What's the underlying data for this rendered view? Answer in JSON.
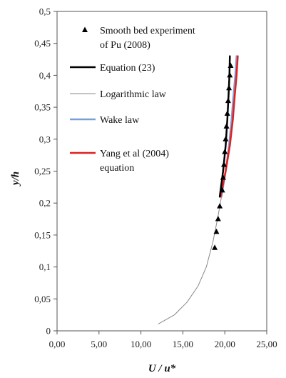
{
  "chart_data": {
    "type": "line",
    "xlabel": "U / u*",
    "ylabel": "y/h",
    "xlim": [
      0,
      25
    ],
    "ylim": [
      0,
      0.5
    ],
    "x_ticks": [
      "0,00",
      "5,00",
      "10,00",
      "15,00",
      "20,00",
      "25,00"
    ],
    "y_ticks": [
      "0",
      "0,05",
      "0,1",
      "0,15",
      "0,2",
      "0,25",
      "0,3",
      "0,35",
      "0,4",
      "0,45",
      "0,5"
    ],
    "grid": false,
    "legend_placement": "top-left",
    "series": [
      {
        "name": "Smooth bed experiment of Pu (2008)",
        "kind": "scatter",
        "color": "#000000",
        "marker": "triangle",
        "points": [
          {
            "x": 18.8,
            "y": 0.13
          },
          {
            "x": 19.0,
            "y": 0.155
          },
          {
            "x": 19.2,
            "y": 0.175
          },
          {
            "x": 19.4,
            "y": 0.195
          },
          {
            "x": 19.7,
            "y": 0.22
          },
          {
            "x": 19.8,
            "y": 0.24
          },
          {
            "x": 19.9,
            "y": 0.26
          },
          {
            "x": 20.0,
            "y": 0.28
          },
          {
            "x": 20.1,
            "y": 0.3
          },
          {
            "x": 20.2,
            "y": 0.32
          },
          {
            "x": 20.3,
            "y": 0.34
          },
          {
            "x": 20.4,
            "y": 0.36
          },
          {
            "x": 20.5,
            "y": 0.38
          },
          {
            "x": 20.6,
            "y": 0.4
          },
          {
            "x": 20.7,
            "y": 0.415
          }
        ]
      },
      {
        "name": "Equation (23)",
        "kind": "line",
        "color": "#000000",
        "width": 2.5,
        "points": [
          {
            "x": 19.4,
            "y": 0.21
          },
          {
            "x": 19.8,
            "y": 0.25
          },
          {
            "x": 20.1,
            "y": 0.29
          },
          {
            "x": 20.3,
            "y": 0.33
          },
          {
            "x": 20.45,
            "y": 0.37
          },
          {
            "x": 20.55,
            "y": 0.4
          },
          {
            "x": 20.6,
            "y": 0.43
          }
        ]
      },
      {
        "name": "Logarithmic law",
        "kind": "line",
        "color": "#888888",
        "width": 1,
        "points": [
          {
            "x": 12.1,
            "y": 0.011
          },
          {
            "x": 14.0,
            "y": 0.025
          },
          {
            "x": 15.5,
            "y": 0.045
          },
          {
            "x": 16.8,
            "y": 0.07
          },
          {
            "x": 17.8,
            "y": 0.1
          },
          {
            "x": 18.6,
            "y": 0.14
          },
          {
            "x": 19.2,
            "y": 0.18
          },
          {
            "x": 19.6,
            "y": 0.21
          }
        ]
      },
      {
        "name": "Wake law",
        "kind": "line",
        "color": "#7aa0d8",
        "width": 2.5,
        "points": [
          {
            "x": 19.6,
            "y": 0.21
          },
          {
            "x": 20.1,
            "y": 0.25
          },
          {
            "x": 20.5,
            "y": 0.29
          },
          {
            "x": 20.8,
            "y": 0.33
          },
          {
            "x": 21.05,
            "y": 0.37
          },
          {
            "x": 21.25,
            "y": 0.4
          },
          {
            "x": 21.4,
            "y": 0.43
          }
        ]
      },
      {
        "name": "Yang et al (2004) equation",
        "kind": "line",
        "color": "#e0201f",
        "width": 2.5,
        "points": [
          {
            "x": 19.5,
            "y": 0.21
          },
          {
            "x": 20.1,
            "y": 0.25
          },
          {
            "x": 20.6,
            "y": 0.29
          },
          {
            "x": 20.95,
            "y": 0.33
          },
          {
            "x": 21.2,
            "y": 0.37
          },
          {
            "x": 21.4,
            "y": 0.4
          },
          {
            "x": 21.55,
            "y": 0.43
          }
        ]
      }
    ],
    "legend": [
      {
        "label_lines": [
          "Smooth bed experiment",
          "of Pu (2008)"
        ],
        "symbol": "triangle",
        "color": "#000000"
      },
      {
        "label_lines": [
          "Equation (23)"
        ],
        "symbol": "line",
        "color": "#000000",
        "width": 2.5
      },
      {
        "label_lines": [
          "Logarithmic law"
        ],
        "symbol": "line",
        "color": "#888888",
        "width": 1
      },
      {
        "label_lines": [
          "Wake law"
        ],
        "symbol": "line",
        "color": "#7aa0d8",
        "width": 2.5
      },
      {
        "label_lines": [
          "Yang et al (2004)",
          "equation"
        ],
        "symbol": "line",
        "color": "#e0201f",
        "width": 2.5
      }
    ]
  }
}
